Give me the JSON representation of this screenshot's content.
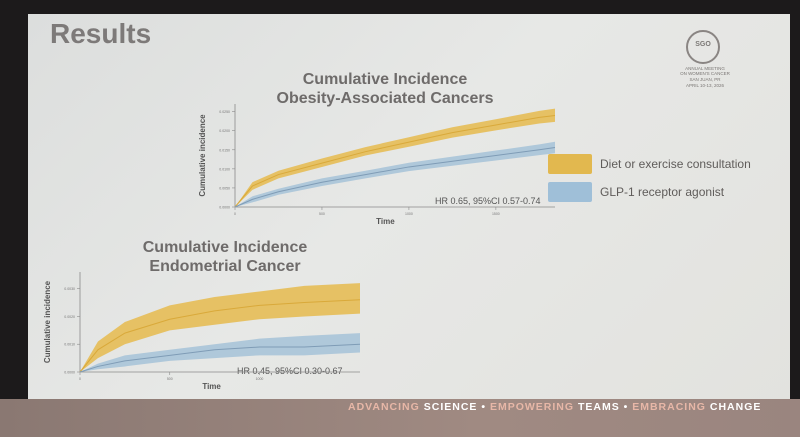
{
  "slide": {
    "heading": "Results",
    "footer": {
      "parts": [
        {
          "text": "ADVANCING ",
          "light": true
        },
        {
          "text": "SCIENCE",
          "light": false
        },
        {
          "text": " • ",
          "light": false
        },
        {
          "text": "EMPOWERING ",
          "light": true
        },
        {
          "text": "TEAMS",
          "light": false
        },
        {
          "text": " • ",
          "light": false
        },
        {
          "text": "EMBRACING ",
          "light": true
        },
        {
          "text": "CHANGE",
          "light": false
        }
      ]
    },
    "logo": {
      "mark": "SGO",
      "lines": [
        "ANNUAL MEETING",
        "ON WOMEN'S CANCER",
        "SAN JUAN, PR",
        "APRIL 10-13, 2026"
      ]
    }
  },
  "legend": [
    {
      "label": "Diet or exercise consultation",
      "color": "#e2b84f"
    },
    {
      "label": "GLP-1 receptor agonist",
      "color": "#9fbfd8"
    }
  ],
  "colors": {
    "series1": "#d9a93a",
    "series1_band": "#e5bd55",
    "series2": "#7f9cb6",
    "series2_band": "#a9c4d8"
  },
  "chart_data": [
    {
      "type": "area",
      "title_line1": "Cumulative Incidence",
      "title_line2": "Obesity-Associated Cancers",
      "xlabel": "Time",
      "ylabel": "Cumulative incidence",
      "xticks": [
        "0",
        "500",
        "1000",
        "1500"
      ],
      "yticks": [
        "0.0000",
        "0.0050",
        "0.0100",
        "0.0150",
        "0.0200",
        "0.0250"
      ],
      "xlim": [
        0,
        1840
      ],
      "ylim": [
        0,
        0.027
      ],
      "annotation": "HR 0.65, 95%CI 0.57-0.74",
      "series": [
        {
          "name": "Diet or exercise consultation",
          "x": [
            0,
            100,
            250,
            500,
            750,
            1000,
            1250,
            1500,
            1750,
            1840
          ],
          "values": [
            0,
            0.0055,
            0.0085,
            0.0115,
            0.0145,
            0.017,
            0.0195,
            0.0215,
            0.0235,
            0.024
          ],
          "lower": [
            0,
            0.0045,
            0.0075,
            0.0105,
            0.0135,
            0.0158,
            0.0182,
            0.0201,
            0.0219,
            0.0223
          ],
          "upper": [
            0,
            0.0065,
            0.0095,
            0.0127,
            0.0157,
            0.0183,
            0.0209,
            0.023,
            0.0252,
            0.0258
          ]
        },
        {
          "name": "GLP-1 receptor agonist",
          "x": [
            0,
            100,
            250,
            500,
            750,
            1000,
            1250,
            1500,
            1750,
            1840
          ],
          "values": [
            0,
            0.002,
            0.004,
            0.0065,
            0.0085,
            0.0105,
            0.012,
            0.0135,
            0.015,
            0.0156
          ],
          "lower": [
            0,
            0.0012,
            0.0032,
            0.0055,
            0.0075,
            0.0094,
            0.0108,
            0.0122,
            0.0136,
            0.0141
          ],
          "upper": [
            0,
            0.0028,
            0.0048,
            0.0075,
            0.0095,
            0.0116,
            0.0132,
            0.0148,
            0.0164,
            0.0171
          ]
        }
      ]
    },
    {
      "type": "area",
      "title_line1": "Cumulative Incidence",
      "title_line2": "Endometrial Cancer",
      "xlabel": "Time",
      "ylabel": "Cumulative incidence",
      "xticks": [
        "0",
        "500",
        "1000"
      ],
      "yticks": [
        "0.0000",
        "0.0010",
        "0.0020",
        "0.0030"
      ],
      "xlim": [
        0,
        1560
      ],
      "ylim": [
        0,
        0.0036
      ],
      "annotation": "HR 0.45, 95%CI 0.30-0.67",
      "series": [
        {
          "name": "Diet or exercise consultation",
          "x": [
            0,
            100,
            250,
            500,
            750,
            1000,
            1250,
            1560
          ],
          "values": [
            0,
            0.0008,
            0.0014,
            0.0019,
            0.0022,
            0.0024,
            0.0025,
            0.0026
          ],
          "lower": [
            0,
            0.0005,
            0.001,
            0.0015,
            0.0017,
            0.0019,
            0.002,
            0.0021
          ],
          "upper": [
            0,
            0.0011,
            0.0018,
            0.0024,
            0.0027,
            0.0029,
            0.0031,
            0.0032
          ]
        },
        {
          "name": "GLP-1 receptor agonist",
          "x": [
            0,
            100,
            250,
            500,
            750,
            1000,
            1250,
            1560
          ],
          "values": [
            0,
            0.0002,
            0.0004,
            0.0006,
            0.0008,
            0.0009,
            0.0009,
            0.001
          ],
          "lower": [
            0,
            0.0001,
            0.0002,
            0.0004,
            0.0005,
            0.0006,
            0.0006,
            0.0007
          ],
          "upper": [
            0,
            0.0003,
            0.0006,
            0.0008,
            0.001,
            0.0012,
            0.0013,
            0.0014
          ]
        }
      ]
    }
  ]
}
